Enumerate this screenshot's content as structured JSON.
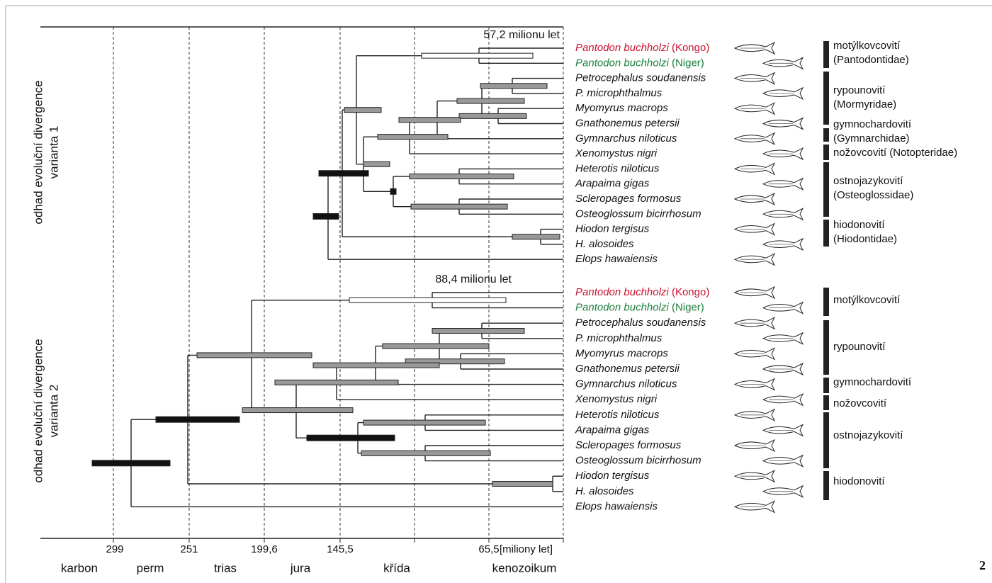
{
  "time_axis": {
    "ticks": [
      "299",
      "251",
      "199,6",
      "145,5",
      "65,5"
    ],
    "unit": "[miliony let]",
    "eras": [
      "karbon",
      "perm",
      "trias",
      "jura",
      "křída",
      "kenozoikum"
    ]
  },
  "panels": [
    {
      "label": [
        "odhad evoluční divergence",
        "varianta 1"
      ],
      "age_note": "57,2 milionu let",
      "species": [
        {
          "name": "Pantodon buchholzi",
          "locality": "(Kongo)",
          "color": "#c8102e"
        },
        {
          "name": "Pantodon buchholzi",
          "locality": "(Niger)",
          "color": "#1a7f3c"
        },
        {
          "name": "Petrocephalus soudanensis"
        },
        {
          "name": "P. microphthalmus"
        },
        {
          "name": "Myomyrus macrops"
        },
        {
          "name": "Gnathonemus petersii"
        },
        {
          "name": "Gymnarchus niloticus"
        },
        {
          "name": "Xenomystus nigri"
        },
        {
          "name": "Heterotis niloticus"
        },
        {
          "name": "Arapaima gigas"
        },
        {
          "name": "Scleropages formosus"
        },
        {
          "name": "Osteoglossum bicirrhosum"
        },
        {
          "name": "Hiodon tergisus"
        },
        {
          "name": "H. alosoides"
        },
        {
          "name": "Elops hawaiensis"
        }
      ],
      "families": [
        {
          "lines": [
            "motýlkovcovití",
            "(Pantodontidae)"
          ]
        },
        {
          "lines": [
            "rypounovití",
            "(Mormyridae)"
          ]
        },
        {
          "lines": [
            "gymnochardovití",
            "(Gymnarchidae)"
          ]
        },
        {
          "lines": [
            "nožovcovití (Notopteridae)"
          ]
        },
        {
          "lines": [
            "ostnojazykovití",
            "(Osteoglossidae)"
          ]
        },
        {
          "lines": [
            "hiodonovití",
            "(Hiodontidae)"
          ]
        }
      ]
    },
    {
      "label": [
        "odhad evoluční divergence",
        "varianta 2"
      ],
      "age_note": "88,4 milionu let",
      "species": [
        {
          "name": "Pantodon buchholzi",
          "locality": "(Kongo)",
          "color": "#c8102e"
        },
        {
          "name": "Pantodon buchholzi",
          "locality": "(Niger)",
          "color": "#1a7f3c"
        },
        {
          "name": "Petrocephalus soudanensis"
        },
        {
          "name": "P. microphthalmus"
        },
        {
          "name": "Myomyrus macrops"
        },
        {
          "name": "Gnathonemus petersii"
        },
        {
          "name": "Gymnarchus niloticus"
        },
        {
          "name": "Xenomystus nigri"
        },
        {
          "name": "Heterotis niloticus"
        },
        {
          "name": "Arapaima gigas"
        },
        {
          "name": "Scleropages formosus"
        },
        {
          "name": "Osteoglossum bicirrhosum"
        },
        {
          "name": "Hiodon tergisus"
        },
        {
          "name": "H. alosoides"
        },
        {
          "name": "Elops hawaiensis"
        }
      ],
      "families": [
        {
          "lines": [
            "motýlkovcovití"
          ]
        },
        {
          "lines": [
            "rypounovití"
          ]
        },
        {
          "lines": [
            "gymnochardovití"
          ]
        },
        {
          "lines": [
            "nožovcovití"
          ]
        },
        {
          "lines": [
            "ostnojazykovití"
          ]
        },
        {
          "lines": [
            "hiodonovití"
          ]
        }
      ]
    }
  ],
  "figure_number": "2"
}
